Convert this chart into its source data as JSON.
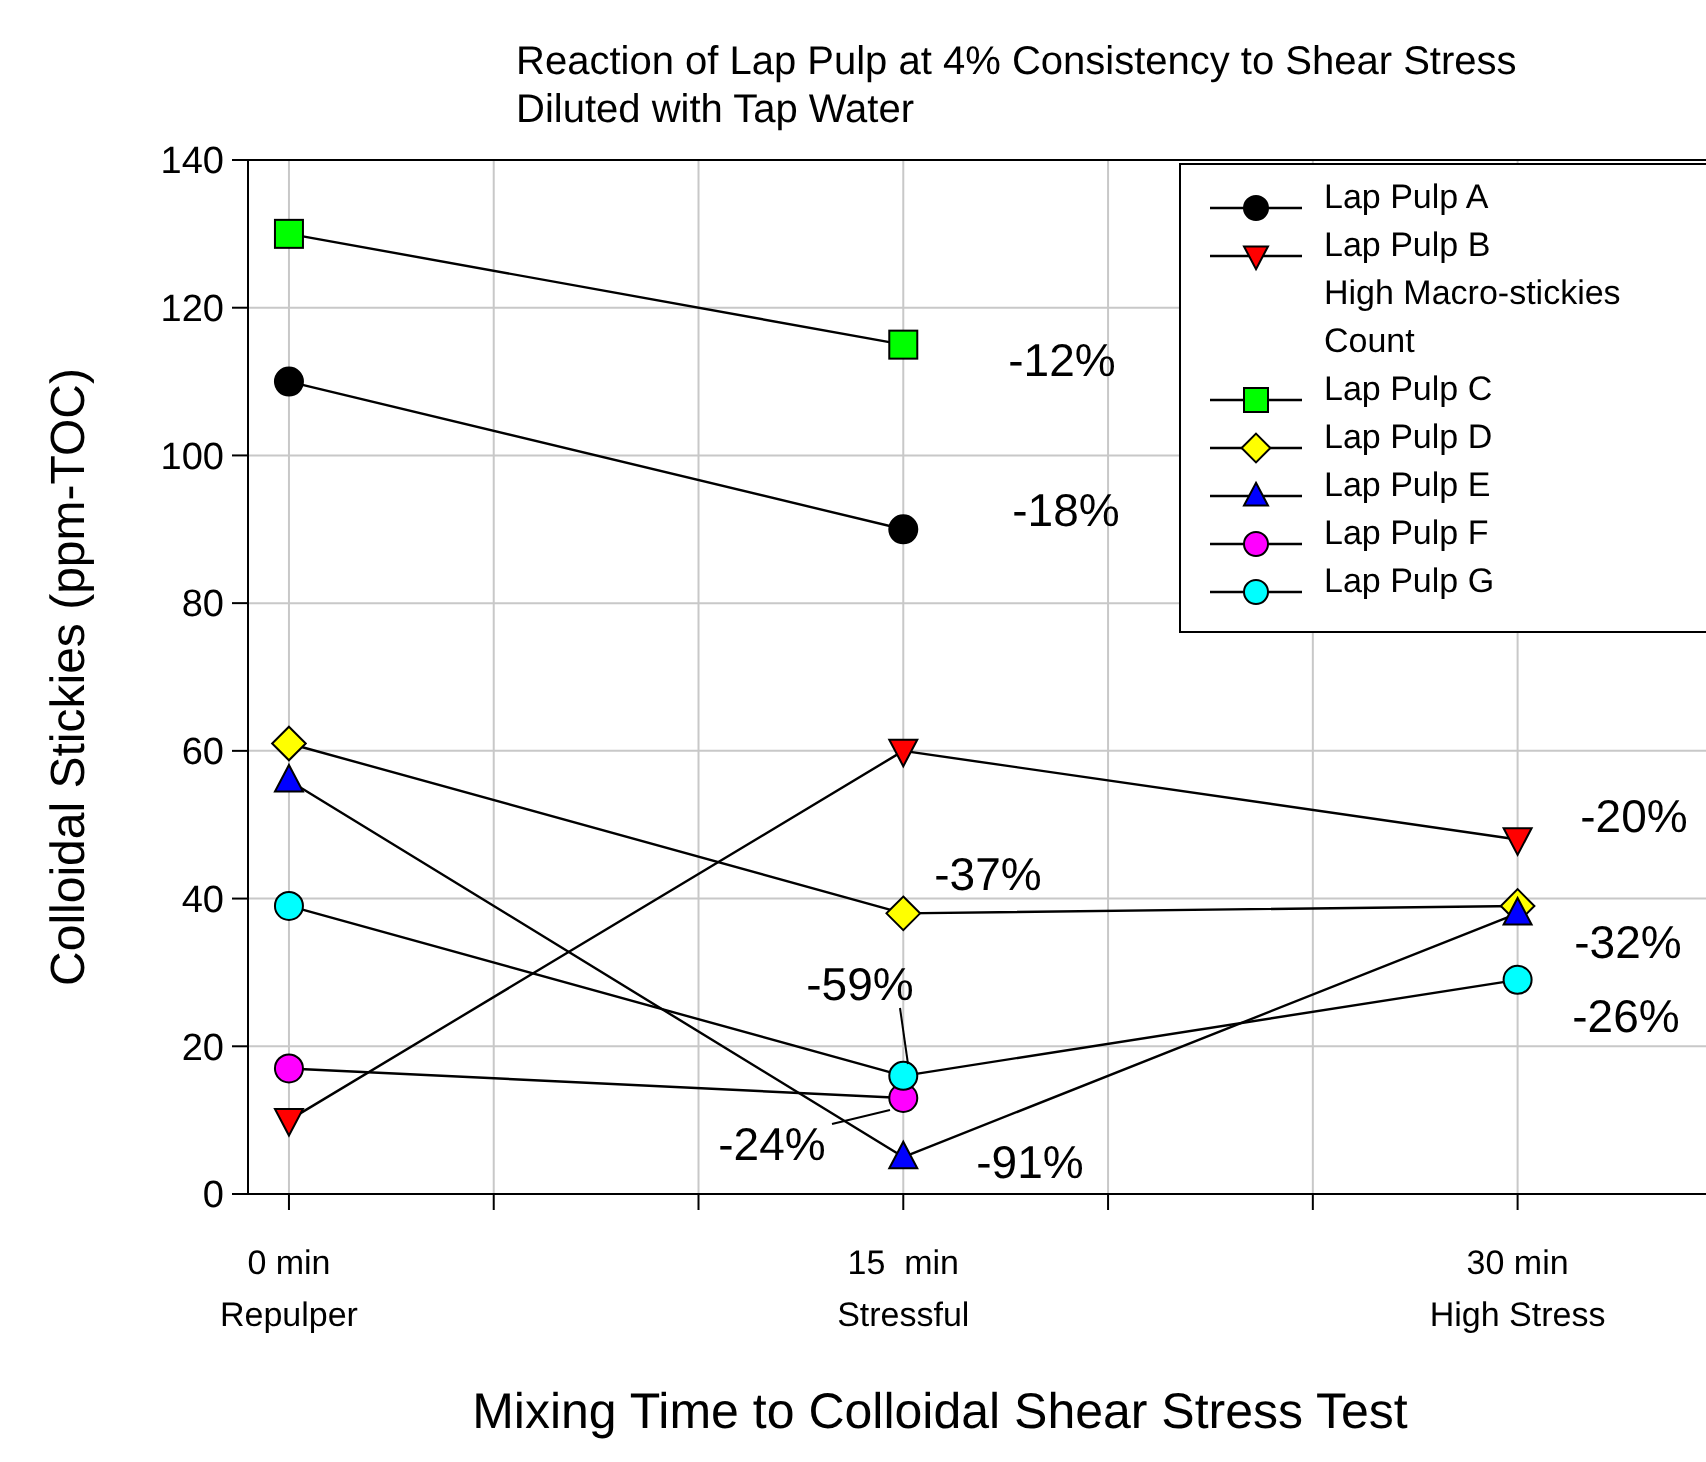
{
  "chart_data": {
    "type": "line",
    "title": "Reaction of Lap Pulp at 4% Consistency to Shear Stress\nDiluted with Tap Water",
    "xlabel": "Mixing Time to Colloidal Shear Stress Test",
    "ylabel": "Colloidal Stickies (ppm-TOC)",
    "x": [
      0,
      15,
      30
    ],
    "xlim": [
      -1,
      34.6
    ],
    "ylim": [
      0,
      140
    ],
    "xticks": [
      {
        "value": 0,
        "label": "0 min\nRepulper"
      },
      {
        "value": 5,
        "label": null
      },
      {
        "value": 10,
        "label": null
      },
      {
        "value": 15,
        "label": "15  min\nStressful"
      },
      {
        "value": 20,
        "label": null
      },
      {
        "value": 25,
        "label": null
      },
      {
        "value": 30,
        "label": "30 min\nHigh Stress"
      }
    ],
    "yticks": [
      0,
      20,
      40,
      60,
      80,
      100,
      120,
      140
    ],
    "grid": true,
    "legend": "top right",
    "series": [
      {
        "name": "Lap Pulp A",
        "color": "#000000",
        "marker": "circle",
        "values": [
          110,
          90,
          null
        ]
      },
      {
        "name": "Lap Pulp B\nHigh Macro-stickies\nCount",
        "color": "#ff0000",
        "marker": "triangle-down",
        "values": [
          10,
          60,
          48
        ]
      },
      {
        "name": "Lap Pulp C",
        "color": "#00ff00",
        "marker": "square",
        "values": [
          130,
          115,
          null
        ]
      },
      {
        "name": "Lap Pulp D",
        "color": "#ffff00",
        "marker": "diamond",
        "values": [
          61,
          38,
          39
        ]
      },
      {
        "name": "Lap Pulp E",
        "color": "#0000ff",
        "marker": "triangle",
        "values": [
          56,
          5,
          38
        ]
      },
      {
        "name": "Lap Pulp F",
        "color": "#ff00ff",
        "marker": "circle",
        "values": [
          17,
          13,
          null
        ]
      },
      {
        "name": "Lap Pulp G",
        "color": "#00ffff",
        "marker": "circle",
        "values": [
          39,
          16,
          29
        ]
      }
    ],
    "annotations": [
      "-12%",
      "-18%",
      "-20%",
      "-37%",
      "-32%",
      "-26%",
      "-91%",
      "-59%",
      "-24%"
    ]
  }
}
